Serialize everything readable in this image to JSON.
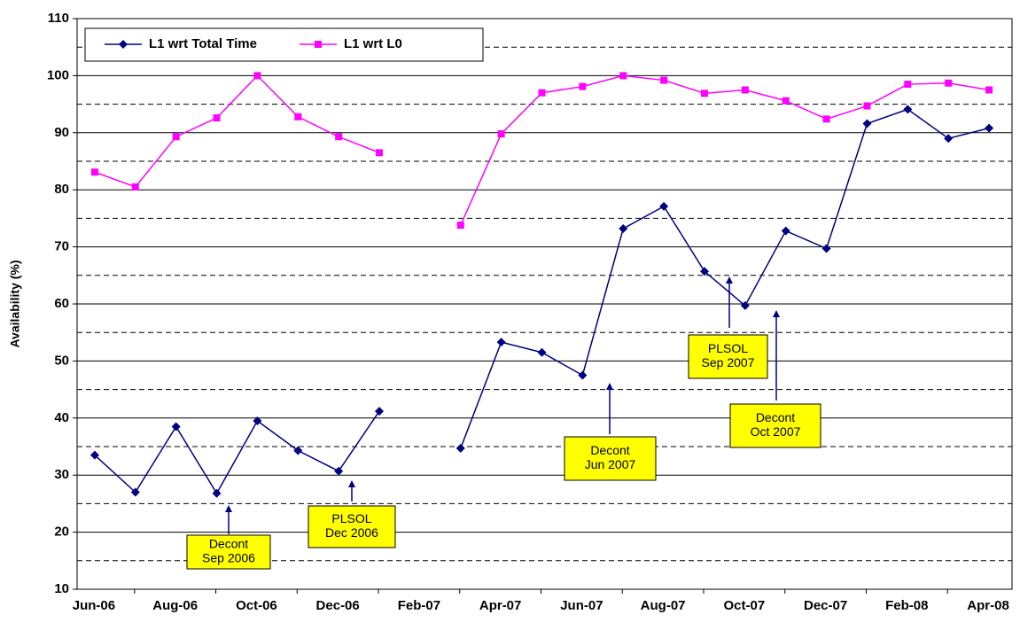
{
  "chart_data": {
    "type": "line",
    "y_label": "Availability (%)",
    "categories": [
      "Jun-06",
      null,
      "Aug-06",
      null,
      "Oct-06",
      null,
      "Dec-06",
      null,
      "Feb-07",
      null,
      "Apr-07",
      null,
      "Jun-07",
      null,
      "Aug-07",
      null,
      "Oct-07",
      null,
      "Dec-07",
      null,
      "Feb-08",
      null,
      "Apr-08"
    ],
    "series": [
      {
        "name": "L1 wrt Total Time",
        "color": "#000080",
        "marker": "diamond",
        "values": [
          33.5,
          27,
          38.5,
          26.8,
          39.5,
          34.3,
          30.7,
          41.2,
          null,
          34.7,
          53.3,
          51.5,
          47.5,
          73.2,
          77.1,
          65.7,
          59.7,
          72.8,
          69.7,
          91.6,
          94.1,
          89,
          90.8
        ]
      },
      {
        "name": "L1 wrt L0",
        "color": "#ff00ff",
        "marker": "square",
        "values": [
          83.1,
          80.5,
          89.3,
          92.6,
          100,
          92.8,
          89.3,
          86.5,
          null,
          73.8,
          89.8,
          97,
          98.1,
          100,
          99.2,
          96.9,
          97.5,
          95.6,
          92.4,
          94.7,
          98.5,
          98.7,
          97.5
        ]
      }
    ],
    "ylim": [
      10,
      110
    ],
    "yticks": [
      10,
      20,
      30,
      40,
      50,
      60,
      70,
      80,
      90,
      100,
      110
    ],
    "minor_gridlines": [
      15,
      25,
      35,
      45,
      55,
      65,
      75,
      85,
      95,
      105
    ],
    "grid": true,
    "legend": "top-left",
    "annotations": [
      {
        "lines": [
          "Decont",
          "Sep 2006"
        ]
      },
      {
        "lines": [
          "PLSOL",
          "Dec 2006"
        ]
      },
      {
        "lines": [
          "Decont",
          "Jun 2007"
        ]
      },
      {
        "lines": [
          "PLSOL",
          "Sep 2007"
        ]
      },
      {
        "lines": [
          "Decont",
          "Oct 2007"
        ]
      }
    ]
  }
}
